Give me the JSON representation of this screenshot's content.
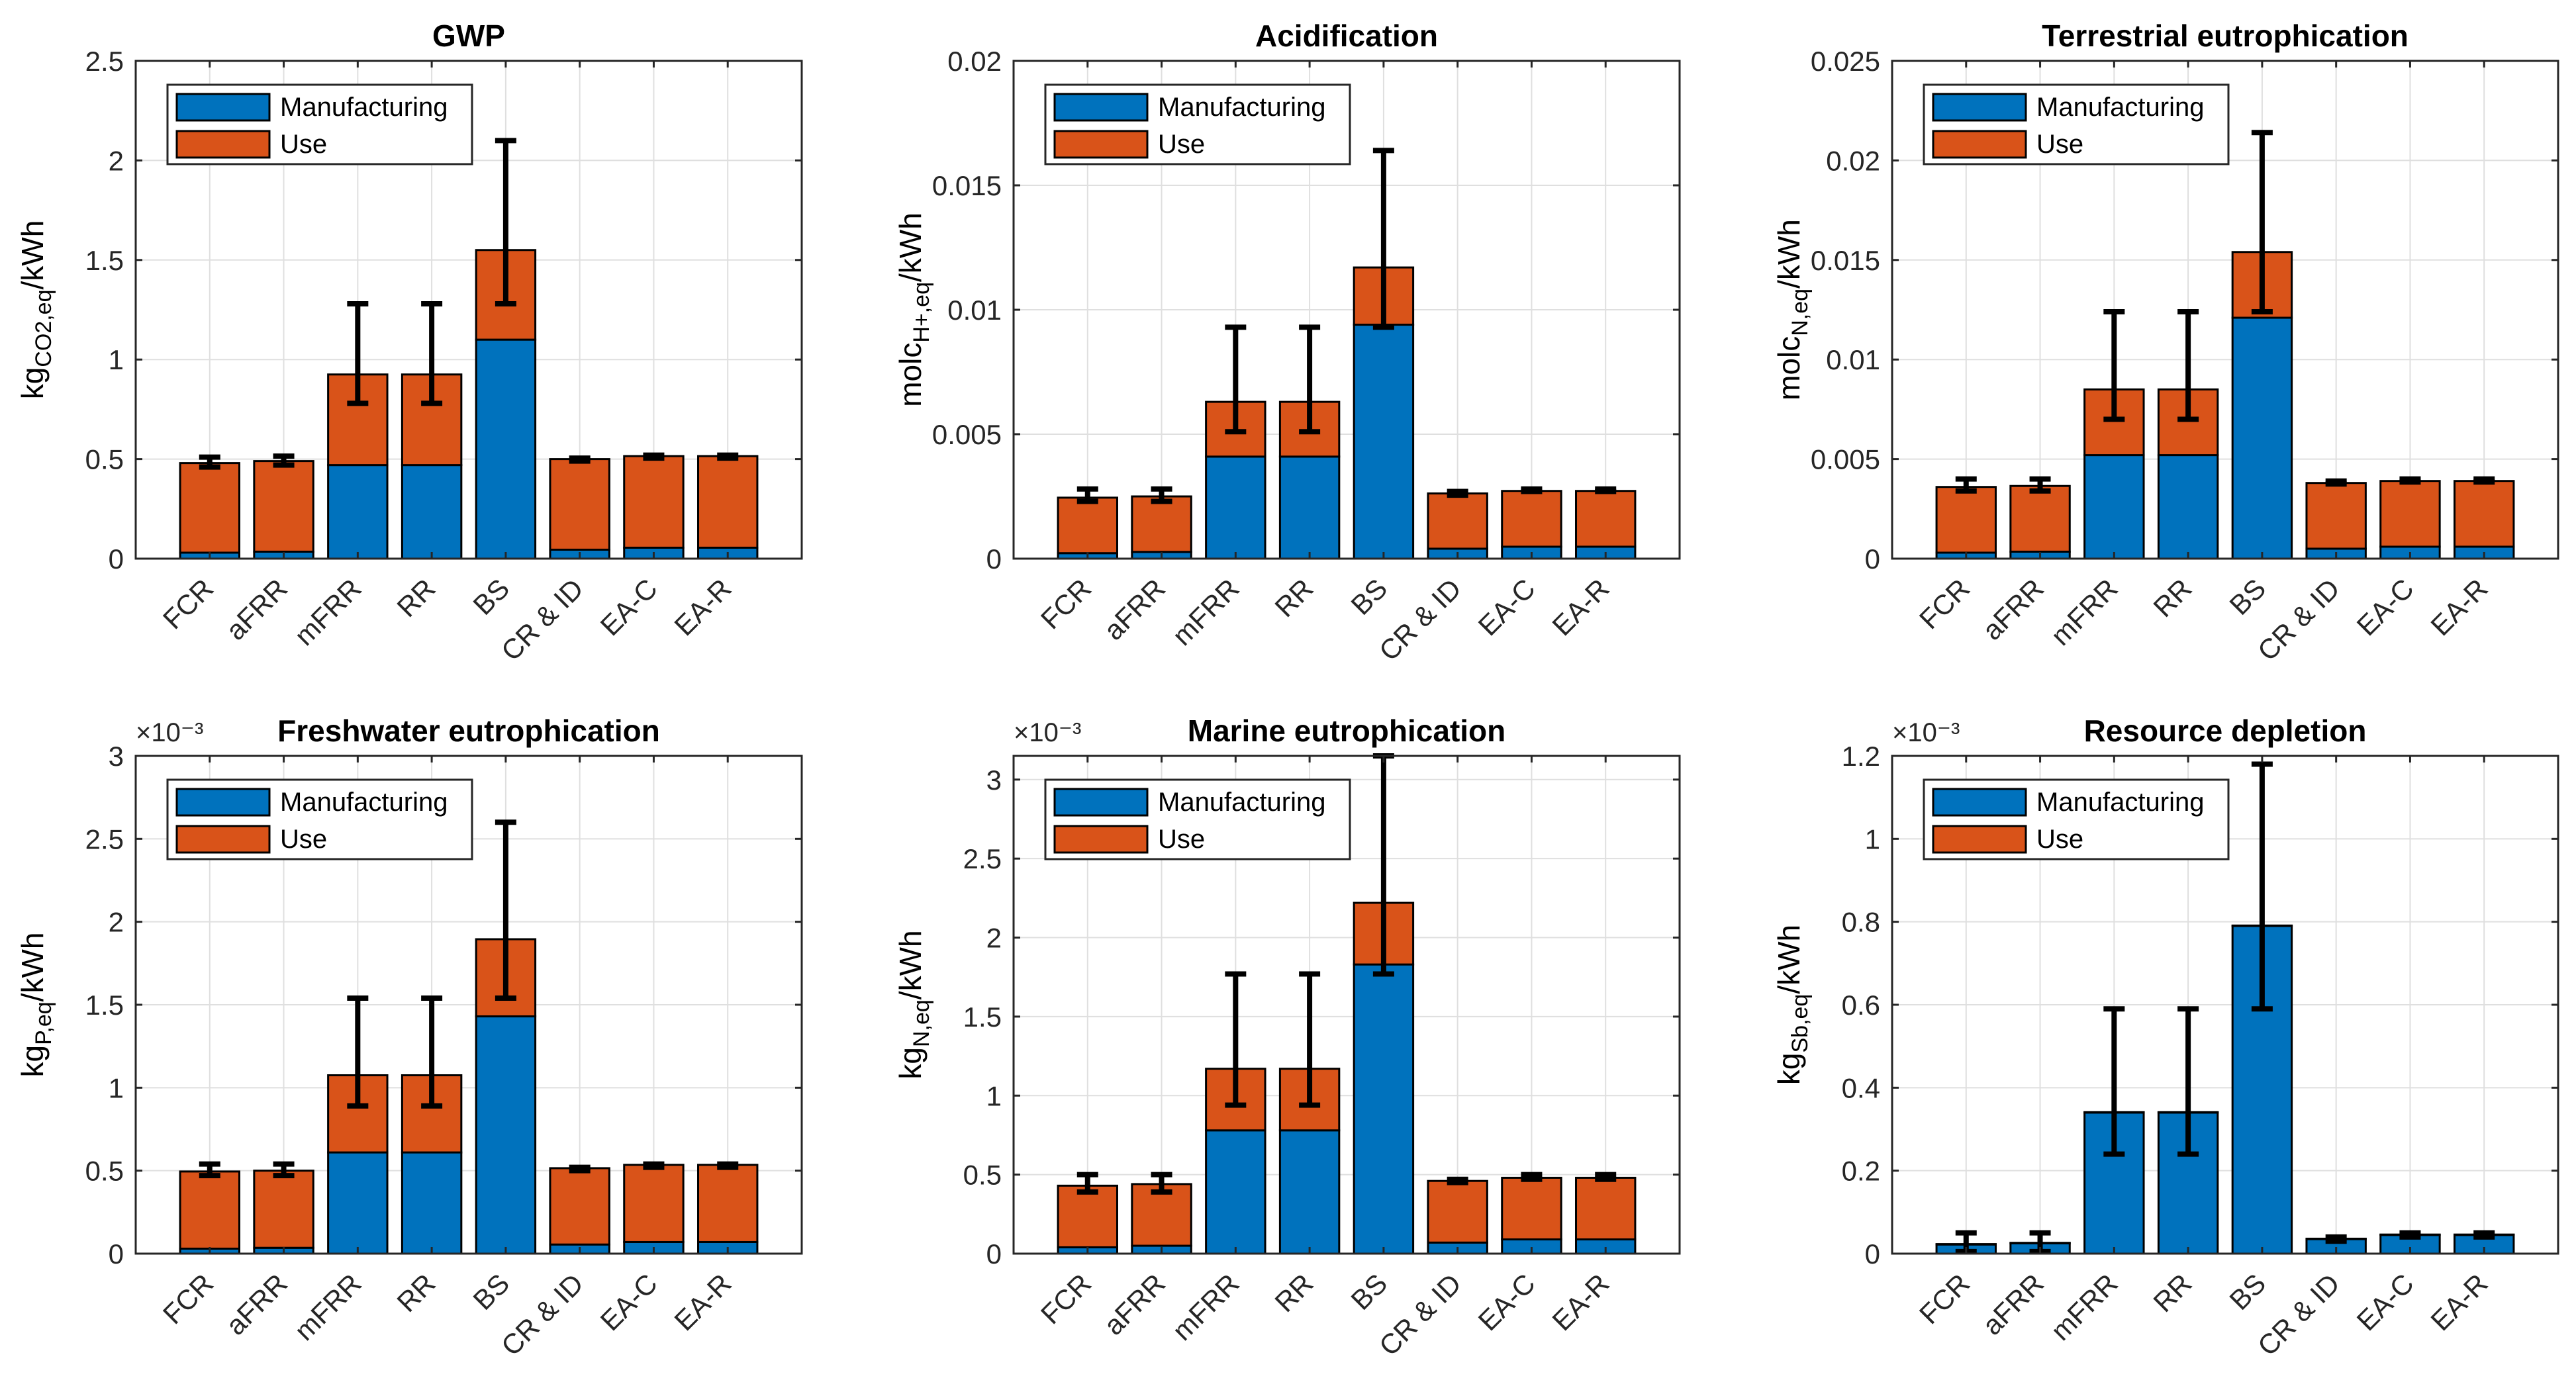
{
  "figure": {
    "legend": [
      "Manufacturing",
      "Use"
    ],
    "colors": {
      "manufacturing": "#0072BD",
      "use": "#D95319",
      "errorbar": "#000000",
      "grid": "#DFDFDF",
      "axis": "#262626"
    },
    "categories": [
      "FCR",
      "aFRR",
      "mFRR",
      "RR",
      "BS",
      "CR & ID",
      "EA-C",
      "EA-R"
    ]
  },
  "chart_data": [
    {
      "type": "bar",
      "stacked": true,
      "title": "GWP",
      "ylabel": {
        "base": "kg",
        "sub": "CO2,eq",
        "suffix": "/kWh"
      },
      "exponent": "",
      "ylim": [
        0,
        2.5
      ],
      "yticks": [
        0,
        0.5,
        1,
        1.5,
        2,
        2.5
      ],
      "yticklabels": [
        "0",
        "0.5",
        "1",
        "1.5",
        "2",
        "2.5"
      ],
      "categories": [
        "FCR",
        "aFRR",
        "mFRR",
        "RR",
        "BS",
        "CR & ID",
        "EA-C",
        "EA-R"
      ],
      "series": [
        {
          "name": "Manufacturing",
          "values": [
            0.03,
            0.035,
            0.47,
            0.47,
            1.1,
            0.045,
            0.055,
            0.055
          ]
        },
        {
          "name": "Use",
          "values": [
            0.45,
            0.455,
            0.455,
            0.455,
            0.45,
            0.455,
            0.46,
            0.46
          ]
        }
      ],
      "errorbars": [
        [
          0.46,
          0.51
        ],
        [
          0.47,
          0.515
        ],
        [
          0.78,
          1.28
        ],
        [
          0.78,
          1.28
        ],
        [
          1.28,
          2.1
        ],
        [
          0.49,
          0.505
        ],
        [
          0.505,
          0.52
        ],
        [
          0.505,
          0.52
        ]
      ]
    },
    {
      "type": "bar",
      "stacked": true,
      "title": "Acidification",
      "ylabel": {
        "base": "molc",
        "sub": "H+,eq",
        "suffix": "/kWh"
      },
      "exponent": "",
      "ylim": [
        0,
        0.02
      ],
      "yticks": [
        0,
        0.005,
        0.01,
        0.015,
        0.02
      ],
      "yticklabels": [
        "0",
        "0.005",
        "0.01",
        "0.015",
        "0.02"
      ],
      "categories": [
        "FCR",
        "aFRR",
        "mFRR",
        "RR",
        "BS",
        "CR & ID",
        "EA-C",
        "EA-R"
      ],
      "series": [
        {
          "name": "Manufacturing",
          "values": [
            0.00022,
            0.00027,
            0.0041,
            0.0041,
            0.0094,
            0.0004,
            0.00048,
            0.00048
          ]
        },
        {
          "name": "Use",
          "values": [
            0.00223,
            0.00223,
            0.0022,
            0.0022,
            0.0023,
            0.00222,
            0.00224,
            0.00224
          ]
        }
      ],
      "errorbars": [
        [
          0.0023,
          0.0028
        ],
        [
          0.0023,
          0.0028
        ],
        [
          0.0051,
          0.0093
        ],
        [
          0.0051,
          0.0093
        ],
        [
          0.0093,
          0.0164
        ],
        [
          0.00255,
          0.0027
        ],
        [
          0.0027,
          0.0028
        ],
        [
          0.0027,
          0.0028
        ]
      ]
    },
    {
      "type": "bar",
      "stacked": true,
      "title": "Terrestrial eutrophication",
      "ylabel": {
        "base": "molc",
        "sub": "N,eq",
        "suffix": "/kWh"
      },
      "exponent": "",
      "ylim": [
        0,
        0.025
      ],
      "yticks": [
        0,
        0.005,
        0.01,
        0.015,
        0.02,
        0.025
      ],
      "yticklabels": [
        "0",
        "0.005",
        "0.01",
        "0.015",
        "0.02",
        "0.025"
      ],
      "categories": [
        "FCR",
        "aFRR",
        "mFRR",
        "RR",
        "BS",
        "CR & ID",
        "EA-C",
        "EA-R"
      ],
      "series": [
        {
          "name": "Manufacturing",
          "values": [
            0.0003,
            0.00035,
            0.0052,
            0.0052,
            0.0121,
            0.0005,
            0.0006,
            0.0006
          ]
        },
        {
          "name": "Use",
          "values": [
            0.0033,
            0.0033,
            0.0033,
            0.0033,
            0.0033,
            0.0033,
            0.0033,
            0.0033
          ]
        }
      ],
      "errorbars": [
        [
          0.0034,
          0.004
        ],
        [
          0.0034,
          0.004
        ],
        [
          0.007,
          0.0124
        ],
        [
          0.007,
          0.0124
        ],
        [
          0.0124,
          0.0214
        ],
        [
          0.00375,
          0.0039
        ],
        [
          0.00385,
          0.004
        ],
        [
          0.00385,
          0.004
        ]
      ]
    },
    {
      "type": "bar",
      "stacked": true,
      "title": "Freshwater eutrophication",
      "ylabel": {
        "base": "kg",
        "sub": "P,eq",
        "suffix": "/kWh"
      },
      "exponent": "×10⁻³",
      "ylim": [
        0,
        3
      ],
      "yticks": [
        0,
        0.5,
        1,
        1.5,
        2,
        2.5,
        3
      ],
      "yticklabels": [
        "0",
        "0.5",
        "1",
        "1.5",
        "2",
        "2.5",
        "3"
      ],
      "categories": [
        "FCR",
        "aFRR",
        "mFRR",
        "RR",
        "BS",
        "CR & ID",
        "EA-C",
        "EA-R"
      ],
      "series": [
        {
          "name": "Manufacturing",
          "values": [
            0.03,
            0.035,
            0.61,
            0.61,
            1.43,
            0.055,
            0.07,
            0.07
          ]
        },
        {
          "name": "Use",
          "values": [
            0.465,
            0.465,
            0.465,
            0.465,
            0.465,
            0.46,
            0.465,
            0.465
          ]
        }
      ],
      "errorbars": [
        [
          0.47,
          0.54
        ],
        [
          0.47,
          0.54
        ],
        [
          0.89,
          1.54
        ],
        [
          0.89,
          1.54
        ],
        [
          1.54,
          2.6
        ],
        [
          0.5,
          0.52
        ],
        [
          0.52,
          0.54
        ],
        [
          0.52,
          0.54
        ]
      ]
    },
    {
      "type": "bar",
      "stacked": true,
      "title": "Marine eutrophication",
      "ylabel": {
        "base": "kg",
        "sub": "N,eq",
        "suffix": "/kWh"
      },
      "exponent": "×10⁻³",
      "ylim": [
        0,
        3.15
      ],
      "yticks": [
        0,
        0.5,
        1,
        1.5,
        2,
        2.5,
        3
      ],
      "yticklabels": [
        "0",
        "0.5",
        "1",
        "1.5",
        "2",
        "2.5",
        "3"
      ],
      "categories": [
        "FCR",
        "aFRR",
        "mFRR",
        "RR",
        "BS",
        "CR & ID",
        "EA-C",
        "EA-R"
      ],
      "series": [
        {
          "name": "Manufacturing",
          "values": [
            0.04,
            0.05,
            0.78,
            0.78,
            1.83,
            0.07,
            0.09,
            0.09
          ]
        },
        {
          "name": "Use",
          "values": [
            0.39,
            0.39,
            0.39,
            0.39,
            0.39,
            0.39,
            0.39,
            0.39
          ]
        }
      ],
      "errorbars": [
        [
          0.39,
          0.5
        ],
        [
          0.39,
          0.5
        ],
        [
          0.94,
          1.77
        ],
        [
          0.94,
          1.77
        ],
        [
          1.77,
          3.15
        ],
        [
          0.45,
          0.47
        ],
        [
          0.47,
          0.5
        ],
        [
          0.47,
          0.5
        ]
      ]
    },
    {
      "type": "bar",
      "stacked": true,
      "title": "Resource depletion",
      "ylabel": {
        "base": "kg",
        "sub": "Sb,eq",
        "suffix": "/kWh"
      },
      "exponent": "×10⁻³",
      "ylim": [
        0,
        1.2
      ],
      "yticks": [
        0,
        0.2,
        0.4,
        0.6,
        0.8,
        1,
        1.2
      ],
      "yticklabels": [
        "0",
        "0.2",
        "0.4",
        "0.6",
        "0.8",
        "1",
        "1.2"
      ],
      "categories": [
        "FCR",
        "aFRR",
        "mFRR",
        "RR",
        "BS",
        "CR & ID",
        "EA-C",
        "EA-R"
      ],
      "series": [
        {
          "name": "Manufacturing",
          "values": [
            0.022,
            0.025,
            0.34,
            0.34,
            0.79,
            0.035,
            0.045,
            0.045
          ]
        },
        {
          "name": "Use",
          "values": [
            0.001,
            0.001,
            0.001,
            0.001,
            0.001,
            0.001,
            0.001,
            0.001
          ]
        }
      ],
      "errorbars": [
        [
          0.005,
          0.05
        ],
        [
          0.005,
          0.05
        ],
        [
          0.24,
          0.59
        ],
        [
          0.24,
          0.59
        ],
        [
          0.59,
          1.18
        ],
        [
          0.03,
          0.04
        ],
        [
          0.04,
          0.05
        ],
        [
          0.04,
          0.05
        ]
      ]
    }
  ]
}
